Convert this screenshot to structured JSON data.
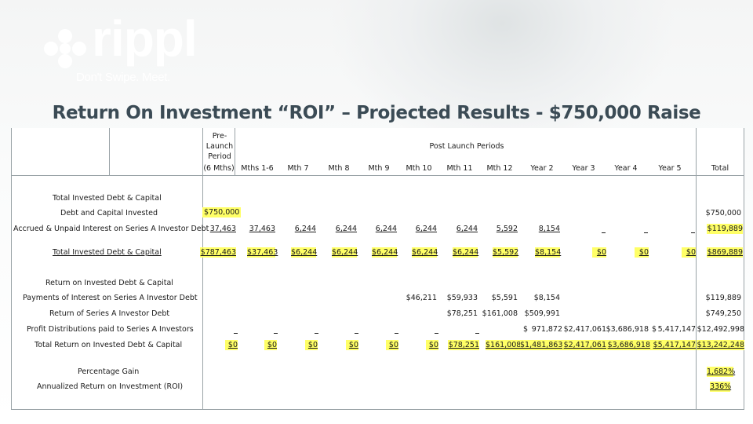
{
  "brand": {
    "name": "rippl",
    "tagline": "Don't Swipe. Meet."
  },
  "title": "Return On Investment “ROI” – Projected Results - $750,000 Raise",
  "header": {
    "pre_launch": [
      "Pre-",
      "Launch",
      "Period"
    ],
    "post_launch": "Post Launch Periods",
    "columns": [
      "(6 Mths)",
      "Mths 1-6",
      "Mth 7",
      "Mth 8",
      "Mth 9",
      "Mth 10",
      "Mth 11",
      "Mth 12",
      "Year 2",
      "Year 3",
      "Year 4",
      "Year 5",
      "Total"
    ]
  },
  "sections": {
    "invested": "Total Invested Debt & Capital",
    "returns": "Return on Invested Debt & Capital"
  },
  "rows": {
    "debt_capital": {
      "label": "Debt and Capital Invested",
      "pre": "$750,000",
      "total": "$750,000"
    },
    "accrued": {
      "label": "Accrued & Unpaid Interest on Series A Investor Debt",
      "values": [
        "37,463",
        "37,463",
        "6,244",
        "6,244",
        "6,244",
        "6,244",
        "6,244",
        "5,592",
        "8,154"
      ],
      "total": "$119,889"
    },
    "total_invested": {
      "label": "Total Invested Debt & Capital",
      "values": [
        "$787,463",
        "$37,463",
        "$6,244",
        "$6,244",
        "$6,244",
        "$6,244",
        "$6,244",
        "$5,592",
        "$8,154",
        "$0",
        "$0",
        "$0"
      ],
      "total": "$869,889"
    },
    "payments_interest": {
      "label": "Payments of Interest on Series A Investor Debt",
      "values": [
        "$46,211",
        "$59,933",
        "$5,591",
        "$8,154"
      ],
      "total": "$119,889"
    },
    "return_series_a": {
      "label": "Return of Series A Investor Debt",
      "values": [
        "$78,251",
        "$161,008",
        "$509,991"
      ],
      "total": "$749,250"
    },
    "profit_dist": {
      "label": "Profit Distributions paid to Series A Investors",
      "values": [
        "$",
        "971,872",
        "$2,417,061",
        "$3,686,918",
        "$",
        "5,417,147"
      ],
      "total": "$12,492,998"
    },
    "total_return": {
      "label": "Total Return on Invested Debt & Capital",
      "values": [
        "$0",
        "$0",
        "$0",
        "$0",
        "$0",
        "$0",
        "$78,251",
        "$161,008",
        "$1,481,863",
        "$2,417,061",
        "$3,686,918",
        "$5,417,147"
      ],
      "total": "$13,242,248"
    },
    "percentage_gain": {
      "label": "Percentage Gain",
      "value": "1,682%"
    },
    "annualized_roi": {
      "label": "Annualized Return on Investment (ROI)",
      "value": "336%"
    }
  },
  "colors": {
    "highlight": "#ffff66",
    "title": "#3b4b55",
    "grid": "#9aa3a7"
  }
}
